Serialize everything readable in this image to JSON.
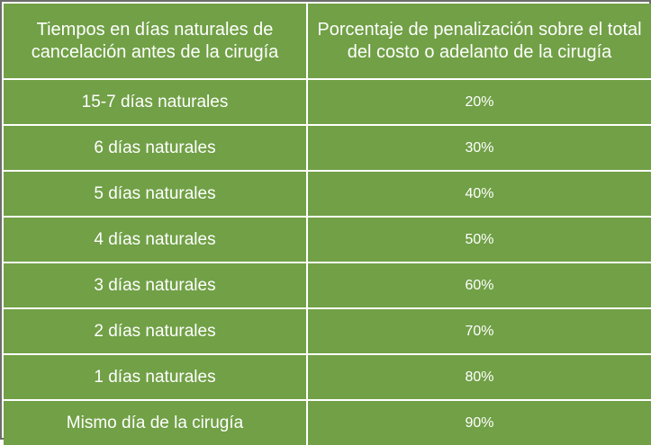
{
  "table": {
    "headers": [
      "Tiempos en días naturales de cancelación antes de la cirugía",
      "Porcentaje de penalización sobre el total del costo o adelanto de la cirugía"
    ],
    "rows": [
      {
        "time": "15-7 días naturales",
        "penalty": "20%"
      },
      {
        "time": "6 días naturales",
        "penalty": "30%"
      },
      {
        "time": "5 días naturales",
        "penalty": "40%"
      },
      {
        "time": "4 días naturales",
        "penalty": "50%"
      },
      {
        "time": "3 días naturales",
        "penalty": "60%"
      },
      {
        "time": "2 días naturales",
        "penalty": "70%"
      },
      {
        "time": "1 días naturales",
        "penalty": "80%"
      },
      {
        "time": "Mismo día de la cirugía",
        "penalty": "90%"
      }
    ]
  },
  "colors": {
    "cell_green": "#71a046",
    "grid_white": "#ffffff",
    "outer_border": "#6d6d6d"
  }
}
